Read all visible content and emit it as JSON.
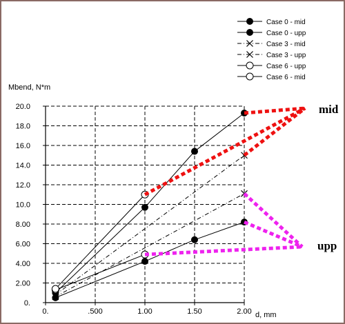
{
  "chart_data": {
    "type": "line",
    "title": "",
    "xlabel": "d, mm",
    "ylabel": "Mbend, N*m",
    "xlim": [
      0,
      2.0
    ],
    "ylim": [
      0,
      20
    ],
    "x_ticks": [
      0,
      0.5,
      1.0,
      1.5,
      2.0
    ],
    "x_tick_labels": [
      "0.",
      ".500",
      "1.00",
      "1.50",
      "2.00"
    ],
    "y_ticks": [
      0,
      2,
      4,
      6,
      8,
      10,
      12,
      14,
      16,
      18,
      20
    ],
    "y_tick_labels": [
      "0.",
      "2.00",
      "4.00",
      "6.00",
      "8.00",
      "10.0",
      "12.0",
      "14.0",
      "16.0",
      "18.0",
      "20.0"
    ],
    "grid": true,
    "legend_position": "top-right",
    "series": [
      {
        "name": "Case 0 - mid",
        "marker": "filled-circle",
        "line": "solid",
        "x": [
          0.1,
          1.0,
          1.5,
          2.0
        ],
        "y": [
          1.0,
          9.7,
          15.4,
          19.3
        ]
      },
      {
        "name": "Case 0 - upp",
        "marker": "filled-circle",
        "line": "solid",
        "x": [
          0.1,
          1.0,
          1.5,
          2.0
        ],
        "y": [
          0.5,
          4.2,
          6.4,
          8.2
        ]
      },
      {
        "name": "Case 3 - mid",
        "marker": "x",
        "line": "dash-dot",
        "x": [
          0.1,
          2.0
        ],
        "y": [
          0.8,
          15.0
        ]
      },
      {
        "name": "Case 3 - upp",
        "marker": "x",
        "line": "dash-dot",
        "x": [
          0.1,
          2.0
        ],
        "y": [
          0.6,
          11.1
        ]
      },
      {
        "name": "Case 6 - upp",
        "marker": "open-circle",
        "line": "solid",
        "x": [
          0.1,
          1.0
        ],
        "y": [
          1.3,
          4.9
        ]
      },
      {
        "name": "Case 6 - mid",
        "marker": "open-circle",
        "line": "solid",
        "x": [
          0.1,
          1.0
        ],
        "y": [
          1.4,
          11.0
        ]
      }
    ],
    "annotations": [
      {
        "text": "mid",
        "color": "#ee1111",
        "targets": [
          {
            "x": 1.0,
            "y": 11.0
          },
          {
            "x": 2.0,
            "y": 15.0
          },
          {
            "x": 2.0,
            "y": 19.3
          }
        ]
      },
      {
        "text": "upp",
        "color": "#ee22ee",
        "targets": [
          {
            "x": 1.0,
            "y": 4.9
          },
          {
            "x": 2.0,
            "y": 8.2
          },
          {
            "x": 2.0,
            "y": 11.1
          }
        ]
      }
    ]
  }
}
